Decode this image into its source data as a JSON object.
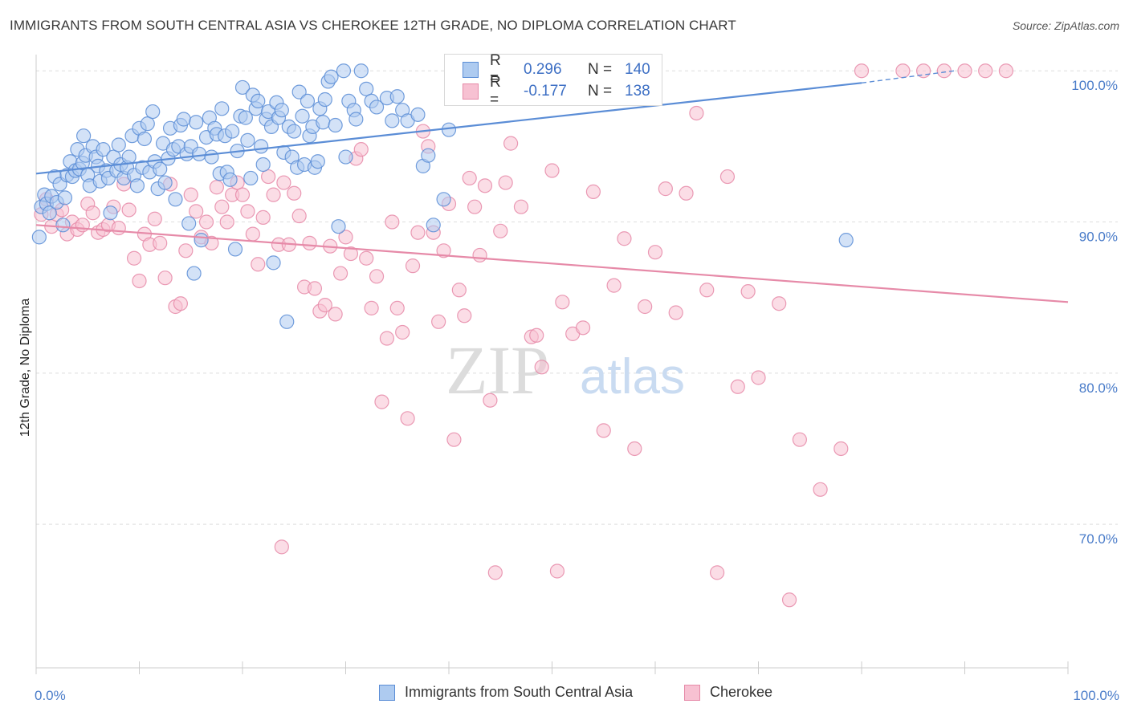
{
  "title": "IMMIGRANTS FROM SOUTH CENTRAL ASIA VS CHEROKEE 12TH GRADE, NO DIPLOMA CORRELATION CHART",
  "source": "Source: ZipAtlas.com",
  "watermark": {
    "zip": "ZIP",
    "atlas": "atlas"
  },
  "legend": {
    "r_label": "R =",
    "n_label": "N =",
    "rows": [
      {
        "r": "0.296",
        "n": "140",
        "fill": "#aecbf0",
        "stroke": "#5b8dd6"
      },
      {
        "r": "-0.177",
        "n": "138",
        "fill": "#f7c1d2",
        "stroke": "#e68aa8"
      }
    ]
  },
  "bottom_legend": [
    {
      "label": "Immigrants from South Central Asia"
    },
    {
      "label": "Cherokee"
    }
  ],
  "chart_data": {
    "type": "scatter",
    "title": "IMMIGRANTS FROM SOUTH CENTRAL ASIA VS CHEROKEE 12TH GRADE, NO DIPLOMA CORRELATION CHART",
    "xlabel": "",
    "ylabel": "12th Grade, No Diploma",
    "x_tick_labels": [
      "0.0%",
      "100.0%"
    ],
    "y_tick_labels": [
      "100.0%",
      "90.0%",
      "80.0%",
      "70.0%"
    ],
    "y_ticks": [
      100,
      90,
      80,
      70
    ],
    "xlim": [
      0,
      100
    ],
    "ylim": [
      60.5,
      101.5
    ],
    "grid": true,
    "legend_position": "top-center",
    "series": [
      {
        "name": "Immigrants from South Central Asia",
        "color": "#5b8dd6",
        "fill": "#aecbf0",
        "r": 0.296,
        "n": 140,
        "trend": {
          "x0": 0,
          "y0": 93.2,
          "x1": 80,
          "y1": 99.2,
          "dash_to_x": 89,
          "dash_to_y": 100
        },
        "points": [
          [
            0.3,
            89.0
          ],
          [
            0.5,
            91.0
          ],
          [
            0.8,
            91.8
          ],
          [
            1.0,
            91.2
          ],
          [
            1.3,
            90.6
          ],
          [
            1.5,
            91.7
          ],
          [
            1.8,
            93.0
          ],
          [
            2.0,
            91.3
          ],
          [
            2.3,
            92.5
          ],
          [
            2.6,
            89.8
          ],
          [
            2.8,
            91.6
          ],
          [
            3.0,
            93.1
          ],
          [
            3.3,
            94.0
          ],
          [
            3.5,
            93.0
          ],
          [
            3.8,
            93.4
          ],
          [
            4.0,
            94.8
          ],
          [
            4.2,
            93.5
          ],
          [
            4.5,
            93.9
          ],
          [
            4.6,
            95.7
          ],
          [
            4.8,
            94.4
          ],
          [
            5.0,
            93.1
          ],
          [
            5.2,
            92.4
          ],
          [
            5.5,
            95.0
          ],
          [
            5.8,
            94.3
          ],
          [
            6.0,
            93.7
          ],
          [
            6.2,
            92.7
          ],
          [
            6.5,
            94.8
          ],
          [
            6.8,
            93.4
          ],
          [
            7.0,
            92.9
          ],
          [
            7.2,
            90.6
          ],
          [
            7.5,
            94.3
          ],
          [
            7.8,
            93.4
          ],
          [
            8.0,
            95.1
          ],
          [
            8.2,
            93.8
          ],
          [
            8.5,
            92.9
          ],
          [
            8.8,
            93.6
          ],
          [
            9.0,
            94.3
          ],
          [
            9.3,
            95.7
          ],
          [
            9.5,
            93.1
          ],
          [
            9.8,
            92.4
          ],
          [
            10.0,
            96.2
          ],
          [
            10.3,
            93.6
          ],
          [
            10.5,
            95.5
          ],
          [
            10.8,
            96.5
          ],
          [
            11.0,
            93.3
          ],
          [
            11.3,
            97.3
          ],
          [
            11.5,
            94.0
          ],
          [
            11.8,
            92.2
          ],
          [
            12.0,
            93.5
          ],
          [
            12.3,
            95.2
          ],
          [
            12.5,
            92.6
          ],
          [
            12.8,
            94.2
          ],
          [
            13.0,
            96.2
          ],
          [
            13.3,
            94.8
          ],
          [
            13.5,
            91.5
          ],
          [
            13.8,
            95.0
          ],
          [
            14.0,
            96.4
          ],
          [
            14.3,
            96.8
          ],
          [
            14.6,
            94.5
          ],
          [
            14.8,
            89.9
          ],
          [
            15.0,
            95.0
          ],
          [
            15.3,
            86.6
          ],
          [
            15.5,
            96.6
          ],
          [
            15.8,
            94.5
          ],
          [
            16.0,
            88.8
          ],
          [
            16.5,
            95.6
          ],
          [
            16.8,
            96.9
          ],
          [
            17.0,
            94.3
          ],
          [
            17.3,
            96.2
          ],
          [
            17.5,
            95.8
          ],
          [
            17.8,
            93.2
          ],
          [
            18.0,
            97.5
          ],
          [
            18.3,
            95.7
          ],
          [
            18.5,
            93.3
          ],
          [
            18.8,
            92.8
          ],
          [
            19.0,
            96.0
          ],
          [
            19.3,
            88.2
          ],
          [
            19.5,
            94.7
          ],
          [
            19.8,
            97.0
          ],
          [
            20.0,
            98.9
          ],
          [
            20.3,
            96.9
          ],
          [
            20.5,
            95.4
          ],
          [
            20.8,
            92.9
          ],
          [
            21.0,
            98.4
          ],
          [
            21.3,
            97.5
          ],
          [
            21.5,
            98.0
          ],
          [
            21.8,
            95.0
          ],
          [
            22.0,
            93.8
          ],
          [
            22.3,
            96.8
          ],
          [
            22.5,
            97.3
          ],
          [
            22.8,
            96.3
          ],
          [
            23.0,
            87.3
          ],
          [
            23.3,
            97.9
          ],
          [
            23.5,
            96.9
          ],
          [
            23.8,
            97.4
          ],
          [
            24.0,
            94.6
          ],
          [
            24.3,
            83.4
          ],
          [
            24.5,
            96.3
          ],
          [
            24.8,
            94.3
          ],
          [
            25.0,
            96.0
          ],
          [
            25.3,
            93.6
          ],
          [
            25.5,
            98.6
          ],
          [
            25.8,
            97.0
          ],
          [
            26.0,
            93.8
          ],
          [
            26.3,
            98.0
          ],
          [
            26.5,
            95.7
          ],
          [
            26.8,
            96.3
          ],
          [
            27.0,
            93.6
          ],
          [
            27.3,
            94.0
          ],
          [
            27.5,
            97.5
          ],
          [
            27.8,
            96.6
          ],
          [
            28.0,
            98.1
          ],
          [
            28.3,
            99.3
          ],
          [
            28.6,
            99.6
          ],
          [
            29.0,
            96.4
          ],
          [
            29.3,
            89.7
          ],
          [
            29.8,
            100.0
          ],
          [
            30.0,
            94.3
          ],
          [
            30.3,
            98.0
          ],
          [
            30.8,
            97.4
          ],
          [
            31.0,
            96.8
          ],
          [
            31.5,
            100.0
          ],
          [
            32.0,
            98.8
          ],
          [
            32.5,
            98.0
          ],
          [
            33.0,
            97.6
          ],
          [
            34.0,
            98.2
          ],
          [
            34.5,
            96.7
          ],
          [
            35.0,
            98.3
          ],
          [
            35.5,
            97.4
          ],
          [
            36.0,
            96.7
          ],
          [
            37.0,
            97.1
          ],
          [
            37.5,
            93.7
          ],
          [
            38.0,
            94.4
          ],
          [
            38.5,
            89.8
          ],
          [
            39.5,
            91.5
          ],
          [
            40.0,
            96.1
          ],
          [
            78.5,
            88.8
          ]
        ]
      },
      {
        "name": "Cherokee",
        "color": "#e68aa8",
        "fill": "#f7c1d2",
        "r": -0.177,
        "n": 138,
        "trend": {
          "x0": 0,
          "y0": 89.8,
          "x1": 100,
          "y1": 84.7
        },
        "points": [
          [
            0.5,
            90.5
          ],
          [
            1.0,
            91.5
          ],
          [
            1.5,
            89.7
          ],
          [
            2.0,
            90.5
          ],
          [
            2.5,
            90.8
          ],
          [
            3.0,
            89.2
          ],
          [
            3.5,
            90.0
          ],
          [
            4.0,
            89.5
          ],
          [
            4.5,
            89.8
          ],
          [
            5.0,
            91.2
          ],
          [
            5.5,
            90.6
          ],
          [
            6.0,
            89.3
          ],
          [
            6.5,
            89.5
          ],
          [
            7.0,
            89.8
          ],
          [
            7.5,
            91.0
          ],
          [
            8.0,
            89.6
          ],
          [
            8.5,
            92.5
          ],
          [
            9.0,
            90.8
          ],
          [
            9.5,
            87.6
          ],
          [
            10.0,
            86.1
          ],
          [
            10.5,
            89.2
          ],
          [
            11.0,
            88.5
          ],
          [
            11.5,
            90.2
          ],
          [
            12.0,
            88.6
          ],
          [
            12.5,
            86.3
          ],
          [
            13.0,
            92.5
          ],
          [
            13.5,
            84.4
          ],
          [
            14.0,
            84.6
          ],
          [
            14.5,
            88.1
          ],
          [
            15.0,
            91.8
          ],
          [
            15.5,
            90.7
          ],
          [
            16.0,
            89.0
          ],
          [
            16.5,
            90.0
          ],
          [
            17.0,
            88.6
          ],
          [
            17.5,
            92.3
          ],
          [
            18.0,
            91.0
          ],
          [
            18.5,
            90.0
          ],
          [
            19.0,
            91.8
          ],
          [
            19.5,
            92.6
          ],
          [
            20.0,
            91.8
          ],
          [
            20.5,
            90.7
          ],
          [
            21.0,
            89.2
          ],
          [
            21.5,
            87.2
          ],
          [
            22.0,
            90.3
          ],
          [
            22.5,
            93.0
          ],
          [
            23.0,
            91.8
          ],
          [
            23.5,
            88.5
          ],
          [
            24.0,
            92.6
          ],
          [
            24.5,
            88.5
          ],
          [
            25.0,
            91.9
          ],
          [
            25.5,
            90.4
          ],
          [
            26.0,
            85.7
          ],
          [
            26.5,
            88.6
          ],
          [
            27.0,
            85.6
          ],
          [
            27.5,
            84.1
          ],
          [
            28.0,
            84.5
          ],
          [
            28.5,
            88.4
          ],
          [
            29.0,
            83.9
          ],
          [
            29.5,
            86.6
          ],
          [
            30.0,
            89.0
          ],
          [
            30.5,
            87.9
          ],
          [
            31.0,
            94.2
          ],
          [
            31.5,
            94.8
          ],
          [
            32.0,
            87.6
          ],
          [
            32.5,
            84.3
          ],
          [
            33.0,
            86.4
          ],
          [
            33.5,
            78.1
          ],
          [
            34.0,
            82.3
          ],
          [
            34.5,
            90.0
          ],
          [
            35.0,
            84.3
          ],
          [
            35.5,
            82.7
          ],
          [
            36.0,
            77.0
          ],
          [
            36.5,
            87.1
          ],
          [
            37.0,
            89.3
          ],
          [
            37.5,
            96.0
          ],
          [
            38.0,
            95.0
          ],
          [
            38.5,
            89.3
          ],
          [
            39.0,
            83.4
          ],
          [
            39.5,
            88.1
          ],
          [
            40.0,
            91.2
          ],
          [
            40.5,
            75.6
          ],
          [
            41.0,
            85.5
          ],
          [
            41.5,
            83.8
          ],
          [
            42.0,
            92.9
          ],
          [
            42.5,
            91.0
          ],
          [
            43.0,
            87.8
          ],
          [
            43.5,
            92.4
          ],
          [
            44.0,
            78.2
          ],
          [
            44.5,
            66.8
          ],
          [
            45.0,
            89.4
          ],
          [
            45.5,
            92.6
          ],
          [
            46.0,
            95.2
          ],
          [
            47.0,
            91.0
          ],
          [
            48.0,
            82.4
          ],
          [
            49.0,
            80.4
          ],
          [
            50.0,
            93.4
          ],
          [
            50.5,
            66.9
          ],
          [
            51.0,
            84.7
          ],
          [
            52.0,
            82.6
          ],
          [
            53.0,
            83.0
          ],
          [
            54.0,
            92.0
          ],
          [
            55.0,
            76.2
          ],
          [
            56.0,
            85.8
          ],
          [
            57.0,
            88.9
          ],
          [
            58.0,
            75.0
          ],
          [
            59.0,
            84.4
          ],
          [
            60.0,
            88.0
          ],
          [
            61.0,
            92.2
          ],
          [
            62.0,
            84.0
          ],
          [
            63.0,
            91.9
          ],
          [
            64.0,
            97.2
          ],
          [
            65.0,
            85.5
          ],
          [
            66.0,
            66.8
          ],
          [
            67.0,
            93.0
          ],
          [
            68.0,
            79.1
          ],
          [
            69.0,
            85.4
          ],
          [
            70.0,
            79.7
          ],
          [
            72.0,
            84.6
          ],
          [
            73.0,
            65.0
          ],
          [
            74.0,
            75.6
          ],
          [
            76.0,
            72.3
          ],
          [
            78.0,
            75.0
          ],
          [
            80.0,
            100.0
          ],
          [
            84.0,
            100.0
          ],
          [
            86.0,
            100.0
          ],
          [
            88.0,
            100.0
          ],
          [
            90.0,
            100.0
          ],
          [
            92.0,
            100.0
          ],
          [
            94.0,
            100.0
          ],
          [
            23.8,
            68.5
          ],
          [
            48.5,
            82.5
          ]
        ]
      }
    ]
  }
}
